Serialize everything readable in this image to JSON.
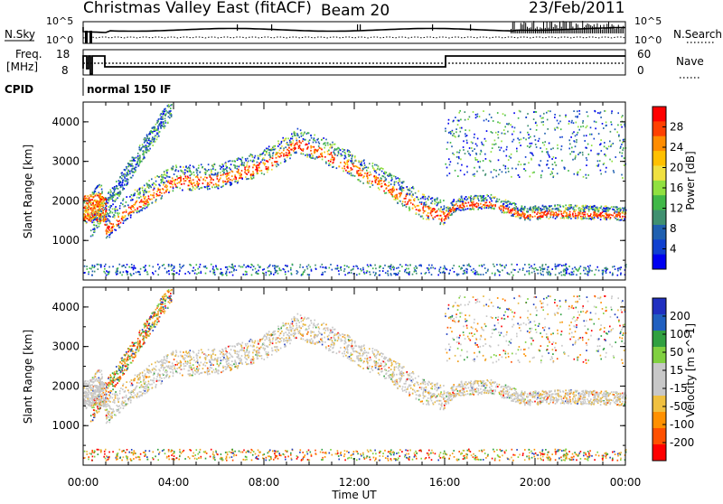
{
  "header": {
    "station": "Christmas Valley East (fitACF)",
    "beam": "Beam 20",
    "date": "23/Feb/2011"
  },
  "status": {
    "nsky_label": "N.Sky",
    "nsearch_label": "N.Search",
    "freq_label": "Freq.",
    "freq_unit": "[MHz]",
    "nave_label": "Nave",
    "cpid_label": "CPID",
    "cpid_value": "normal 150 IF",
    "nsky_ticks": [
      "10^5",
      "10^0"
    ],
    "nsearch_ticks": [
      "10^5",
      "10^0"
    ],
    "freq_ticks": [
      "18",
      "8"
    ],
    "nave_ticks": [
      "60",
      "0"
    ]
  },
  "chart_data": [
    {
      "type": "heatmap",
      "name": "Power",
      "ylabel": "Slant Range [km]",
      "colorbar_label": "Power [dB]",
      "colorbar_ticks": [
        "28",
        "24",
        "20",
        "16",
        "12",
        "8",
        "4"
      ],
      "colorbar_colors": [
        "#ff0000",
        "#ff4000",
        "#ff8c00",
        "#ffc000",
        "#f0e040",
        "#90e040",
        "#40b848",
        "#409070",
        "#2060b0",
        "#1040d0",
        "#0000f0"
      ],
      "ylim": [
        0,
        4500
      ],
      "yticks": [
        "1000",
        "2000",
        "3000",
        "4000"
      ],
      "xlim": [
        "00:00",
        "24:00"
      ],
      "xticks": [
        "00:00",
        "04:00",
        "08:00",
        "12:00",
        "16:00",
        "20:00",
        "00:00"
      ],
      "trace_range_km": [
        [
          0.0,
          1600
        ],
        [
          0.4,
          1850
        ],
        [
          0.8,
          2100
        ],
        [
          1.0,
          1250
        ],
        [
          2.0,
          1800
        ],
        [
          4.0,
          2500
        ],
        [
          6.0,
          2550
        ],
        [
          8.0,
          2900
        ],
        [
          9.5,
          3450
        ],
        [
          11.0,
          3100
        ],
        [
          13.0,
          2500
        ],
        [
          15.0,
          1800
        ],
        [
          16.0,
          1600
        ],
        [
          16.5,
          1900
        ],
        [
          18.0,
          1950
        ],
        [
          19.5,
          1650
        ],
        [
          21.0,
          1700
        ],
        [
          24.0,
          1650
        ]
      ]
    },
    {
      "type": "heatmap",
      "name": "Velocity",
      "ylabel": "Slant Range [km]",
      "colorbar_label": "Velocity [m s^-1]",
      "colorbar_ticks": [
        "200",
        "100",
        "50",
        "15",
        "-15",
        "-50",
        "-100",
        "-200"
      ],
      "colorbar_colors": [
        "#2030c0",
        "#2060c0",
        "#30a040",
        "#80d040",
        "#c8c8c8",
        "#c8c8c8",
        "#f0c040",
        "#ff9000",
        "#ff5000",
        "#ff0000"
      ],
      "ylim": [
        0,
        4500
      ],
      "yticks": [
        "1000",
        "2000",
        "3000",
        "4000"
      ],
      "xlim": [
        "00:00",
        "24:00"
      ],
      "xticks": [
        "00:00",
        "04:00",
        "08:00",
        "12:00",
        "16:00",
        "20:00",
        "00:00"
      ],
      "xlabel": "Time UT"
    }
  ]
}
